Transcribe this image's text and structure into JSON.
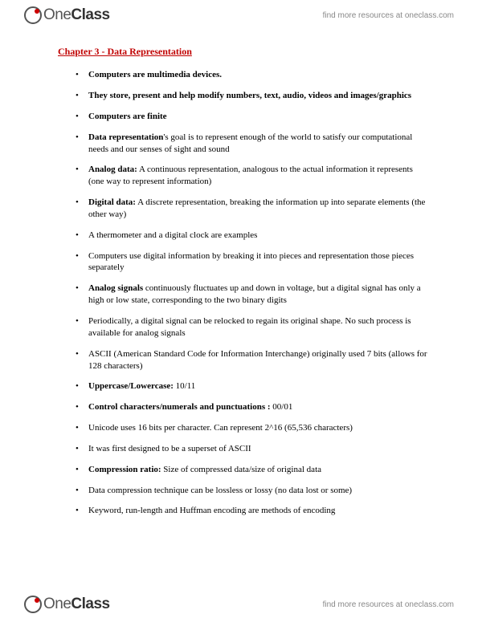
{
  "brand": {
    "name_part1": "One",
    "name_part2": "Class",
    "tagline": "find more resources at oneclass.com"
  },
  "document": {
    "title": "Chapter 3 - Data Representation",
    "title_color": "#c00000",
    "text_color": "#000000",
    "background_color": "#ffffff",
    "font_family": "Georgia, Times New Roman, serif",
    "body_fontsize_pt": 8.5,
    "title_fontsize_pt": 9,
    "bullets": [
      {
        "segments": [
          {
            "text": "Computers are multimedia devices.",
            "bold": true
          }
        ]
      },
      {
        "segments": [
          {
            "text": "They store, present and help modify numbers, text, audio, videos and images/graphics",
            "bold": true
          }
        ]
      },
      {
        "segments": [
          {
            "text": "Computers are finite",
            "bold": true
          }
        ]
      },
      {
        "segments": [
          {
            "text": "Data representation",
            "bold": true
          },
          {
            "text": "'s goal is to represent enough of the world to satisfy our computational needs and our senses of sight and sound",
            "bold": false
          }
        ]
      },
      {
        "segments": [
          {
            "text": "Analog data:",
            "bold": true
          },
          {
            "text": " A continuous representation, analogous to the actual information it represents (one way to represent information)",
            "bold": false
          }
        ]
      },
      {
        "segments": [
          {
            "text": "Digital data:",
            "bold": true
          },
          {
            "text": " A discrete representation, breaking the information up into separate elements (the other way)",
            "bold": false
          }
        ]
      },
      {
        "segments": [
          {
            "text": "A thermometer and  a digital clock are examples",
            "bold": false
          }
        ]
      },
      {
        "segments": [
          {
            "text": "Computers use digital information by breaking it into pieces and representation those pieces separately",
            "bold": false
          }
        ]
      },
      {
        "segments": [
          {
            "text": "Analog signals",
            "bold": true
          },
          {
            "text": " continuously fluctuates up and down in voltage, but a digital signal has only a high or low state, corresponding to the two binary digits",
            "bold": false
          }
        ]
      },
      {
        "segments": [
          {
            "text": "Periodically, a digital signal can be relocked to regain its original shape. No such process is available for analog signals",
            "bold": false
          }
        ]
      },
      {
        "segments": [
          {
            "text": "ASCII (American Standard Code for Information Interchange) originally used 7 bits (allows for 128 characters)",
            "bold": false
          }
        ]
      },
      {
        "segments": [
          {
            "text": "Uppercase/Lowercase:",
            "bold": true
          },
          {
            "text": " 10/11",
            "bold": false
          }
        ]
      },
      {
        "segments": [
          {
            "text": "Control characters/numerals and punctuations :",
            "bold": true
          },
          {
            "text": " 00/01",
            "bold": false
          }
        ]
      },
      {
        "segments": [
          {
            "text": "Unicode uses 16 bits per character. Can represent 2^16 (65,536 characters)",
            "bold": false
          }
        ]
      },
      {
        "segments": [
          {
            "text": "It was first designed to be a superset of ASCII",
            "bold": false
          }
        ]
      },
      {
        "segments": [
          {
            "text": "Compression ratio:",
            "bold": true
          },
          {
            "text": " Size of compressed data/size of original data",
            "bold": false
          }
        ]
      },
      {
        "segments": [
          {
            "text": "Data compression technique can be lossless or lossy (no data lost or some)",
            "bold": false
          }
        ]
      },
      {
        "segments": [
          {
            "text": "Keyword, run-length and Huffman encoding are methods of encoding",
            "bold": false
          }
        ]
      }
    ]
  }
}
